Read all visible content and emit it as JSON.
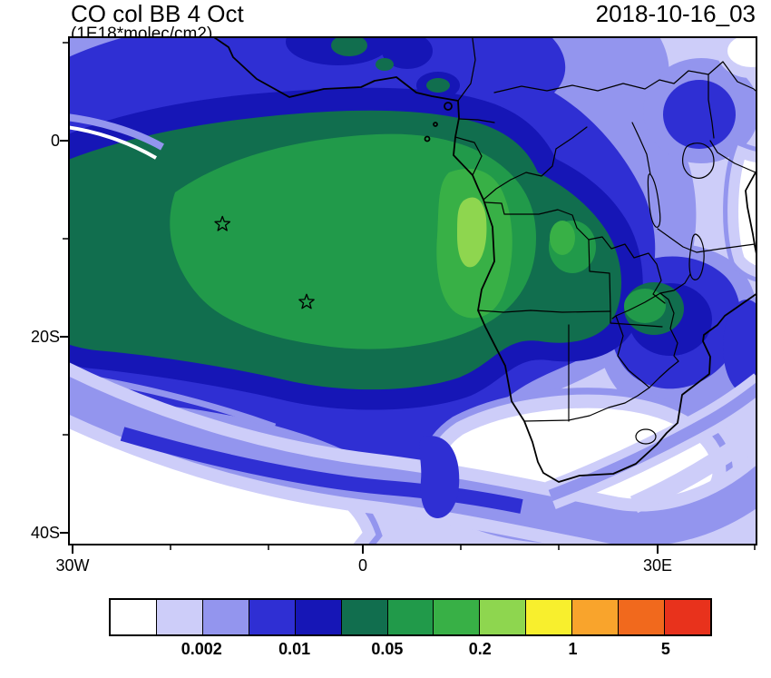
{
  "header": {
    "title": "CO col BB 4 Oct",
    "subtitle": "(1E18*molec/cm2)",
    "timestamp": "2018-10-16_03"
  },
  "axes": {
    "y_ticks": [
      "0",
      "20S",
      "40S"
    ],
    "x_ticks": [
      "30W",
      "0",
      "30E"
    ]
  },
  "colorbar": {
    "labels": [
      "0.002",
      "0.01",
      "0.05",
      "0.2",
      "1",
      "5"
    ],
    "colors": [
      "#ffffff",
      "#cdcdf9",
      "#9395ee",
      "#2f2fd3",
      "#1616b6",
      "#116e4e",
      "#219a4a",
      "#38b046",
      "#8ed64f",
      "#f8ef2d",
      "#f9a42c",
      "#f1691d",
      "#e8321c"
    ]
  },
  "chart_data": {
    "type": "heatmap",
    "subtype": "filled-contour-map",
    "title": "CO col BB 4 Oct",
    "units": "1E18*molec/cm2",
    "time_label": "2018-10-16_03",
    "x_tick_labels": [
      "30W",
      "0",
      "30E"
    ],
    "y_tick_labels": [
      "0",
      "20S",
      "40S"
    ],
    "colorbar_tick_labels": [
      "0.002",
      "0.01",
      "0.05",
      "0.2",
      "1",
      "5"
    ],
    "palette": [
      "#ffffff",
      "#cdcdf9",
      "#9395ee",
      "#2f2fd3",
      "#1616b6",
      "#116e4e",
      "#219a4a",
      "#38b046",
      "#8ed64f",
      "#f8ef2d",
      "#f9a42c",
      "#f1691d",
      "#e8321c"
    ],
    "legend_position": "bottom",
    "station_markers": [
      {
        "symbol": "star",
        "x_frac": 0.224,
        "y_frac": 0.369
      },
      {
        "symbol": "star",
        "x_frac": 0.346,
        "y_frac": 0.522
      }
    ]
  }
}
